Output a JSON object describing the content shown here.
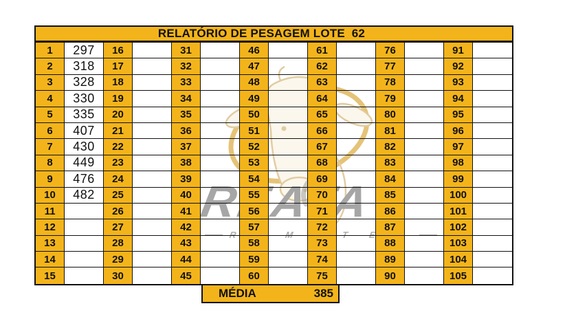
{
  "title": "RELATÓRIO DE PESAGEM LOTE  62",
  "colors": {
    "accent_orange": "#F3B41B",
    "grid_line": "#111111",
    "watermark_gray": "#A6A6A6",
    "watermark_gray_light": "#B0B0B0",
    "bull_gold": "#D7A12C",
    "bull_cream_stroke": "#DCC494",
    "bull_cream_fill": "#FBF6E9"
  },
  "weigh_table": {
    "groups": [
      {
        "indices": [
          1,
          2,
          3,
          4,
          5,
          6,
          7,
          8,
          9,
          10,
          11,
          12,
          13,
          14,
          15
        ],
        "values": [
          "297",
          "318",
          "328",
          "330",
          "335",
          "407",
          "430",
          "449",
          "476",
          "482",
          "",
          "",
          "",
          "",
          ""
        ]
      },
      {
        "indices": [
          16,
          17,
          18,
          19,
          20,
          21,
          22,
          23,
          24,
          25,
          26,
          27,
          28,
          29,
          30
        ],
        "values": [
          "",
          "",
          "",
          "",
          "",
          "",
          "",
          "",
          "",
          "",
          "",
          "",
          "",
          "",
          ""
        ]
      },
      {
        "indices": [
          31,
          32,
          33,
          34,
          35,
          36,
          37,
          38,
          39,
          40,
          41,
          42,
          43,
          44,
          45
        ],
        "values": [
          "",
          "",
          "",
          "",
          "",
          "",
          "",
          "",
          "",
          "",
          "",
          "",
          "",
          "",
          ""
        ]
      },
      {
        "indices": [
          46,
          47,
          48,
          49,
          50,
          51,
          52,
          53,
          54,
          55,
          56,
          57,
          58,
          59,
          60
        ],
        "values": [
          "",
          "",
          "",
          "",
          "",
          "",
          "",
          "",
          "",
          "",
          "",
          "",
          "",
          "",
          ""
        ]
      },
      {
        "indices": [
          61,
          62,
          63,
          64,
          65,
          66,
          67,
          68,
          69,
          70,
          71,
          72,
          73,
          74,
          75
        ],
        "values": [
          "",
          "",
          "",
          "",
          "",
          "",
          "",
          "",
          "",
          "",
          "",
          "",
          "",
          "",
          ""
        ]
      },
      {
        "indices": [
          76,
          77,
          78,
          79,
          80,
          81,
          82,
          83,
          84,
          85,
          86,
          87,
          88,
          89,
          90
        ],
        "values": [
          "",
          "",
          "",
          "",
          "",
          "",
          "",
          "",
          "",
          "",
          "",
          "",
          "",
          "",
          ""
        ]
      },
      {
        "indices": [
          91,
          92,
          93,
          94,
          95,
          96,
          97,
          98,
          99,
          100,
          101,
          102,
          103,
          104,
          105
        ],
        "values": [
          "",
          "",
          "",
          "",
          "",
          "",
          "",
          "",
          "",
          "",
          "",
          "",
          "",
          "",
          ""
        ]
      }
    ]
  },
  "summary": {
    "label": "MÉDIA",
    "value": "385"
  },
  "watermark": {
    "brand": "REATA",
    "subtext": "R E M A T E S",
    "bull_icon": "bull-head-icon"
  }
}
